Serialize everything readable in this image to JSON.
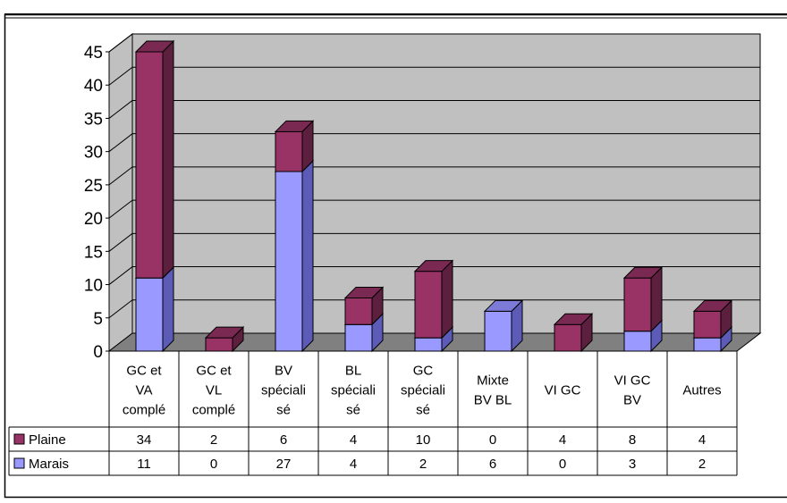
{
  "chart_data": {
    "type": "bar",
    "stacked": true,
    "three_d": true,
    "categories": [
      [
        "GC et",
        "VA",
        "complé"
      ],
      [
        "GC et",
        "VL",
        "complé"
      ],
      [
        "BV",
        "spéciali",
        "sé"
      ],
      [
        "BL",
        "spéciali",
        "sé"
      ],
      [
        "GC",
        "spéciali",
        "sé"
      ],
      [
        "Mixte",
        "BV BL"
      ],
      [
        "VI GC"
      ],
      [
        "VI GC",
        "BV"
      ],
      [
        "Autres"
      ]
    ],
    "series": [
      {
        "name": "Marais",
        "values": [
          11,
          0,
          27,
          4,
          2,
          6,
          0,
          3,
          2
        ],
        "color": "#9999ff",
        "side_color": "#5c5cb8",
        "top_color": "#7c7cd8"
      },
      {
        "name": "Plaine",
        "values": [
          34,
          2,
          6,
          4,
          10,
          0,
          4,
          8,
          4
        ],
        "color": "#993366",
        "side_color": "#5c1f3d",
        "top_color": "#7a2952"
      }
    ],
    "table_rows": [
      {
        "name": "Plaine",
        "values": [
          "34",
          "2",
          "6",
          "4",
          "10",
          "0",
          "4",
          "8",
          "4"
        ]
      },
      {
        "name": "Marais",
        "values": [
          "11",
          "0",
          "27",
          "4",
          "2",
          "6",
          "0",
          "3",
          "2"
        ]
      }
    ],
    "yticks": [
      "0",
      "5",
      "10",
      "15",
      "20",
      "25",
      "30",
      "35",
      "40",
      "45"
    ],
    "ylim": [
      0,
      45
    ],
    "grid": true,
    "data_table": true,
    "wall_color": "#c0c0c0",
    "floor_color": "#808080",
    "title": "",
    "xlabel": "",
    "ylabel": ""
  }
}
